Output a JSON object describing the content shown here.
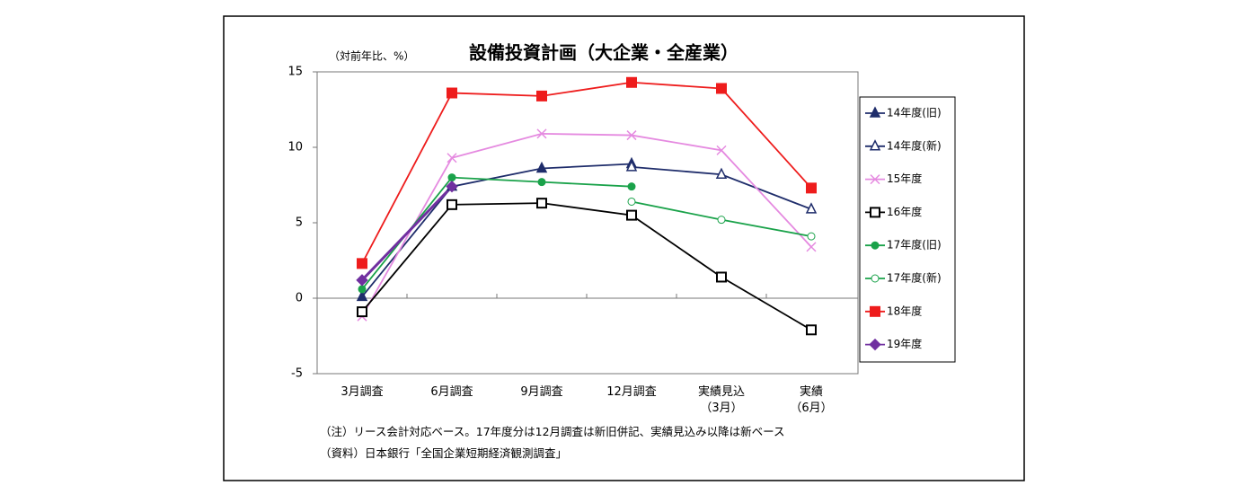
{
  "chart_data": {
    "type": "line",
    "title": "設備投資計画（大企業・全産業）",
    "y_label": "（対前年比、%）",
    "categories": [
      "3月調査",
      "6月調査",
      "9月調査",
      "12月調査",
      "実績見込\n（3月）",
      "実績\n（6月）"
    ],
    "ylim": [
      -5,
      15
    ],
    "yticks": [
      -5,
      0,
      5,
      10,
      15
    ],
    "series": [
      {
        "name": "14年度(旧)",
        "color": "#1f2d6b",
        "marker": "triangle",
        "values": [
          0.1,
          7.4,
          8.6,
          8.9,
          null,
          null
        ]
      },
      {
        "name": "14年度(新)",
        "color": "#1f2d6b",
        "marker": "triangle-open",
        "values": [
          null,
          null,
          null,
          8.7,
          8.2,
          5.9
        ]
      },
      {
        "name": "15年度",
        "color": "#e58ae0",
        "marker": "x",
        "values": [
          -1.2,
          9.3,
          10.9,
          10.8,
          9.8,
          3.4
        ]
      },
      {
        "name": "16年度",
        "color": "#000000",
        "marker": "square-open",
        "values": [
          -0.9,
          6.2,
          6.3,
          5.5,
          1.4,
          -2.1
        ]
      },
      {
        "name": "17年度(旧)",
        "color": "#1aa24a",
        "marker": "circle",
        "values": [
          0.6,
          8.0,
          7.7,
          7.4,
          null,
          null
        ]
      },
      {
        "name": "17年度(新)",
        "color": "#1aa24a",
        "marker": "circle-open",
        "values": [
          null,
          null,
          null,
          6.4,
          5.2,
          4.1
        ]
      },
      {
        "name": "18年度",
        "color": "#ee1c1c",
        "marker": "square",
        "values": [
          2.3,
          13.6,
          13.4,
          14.3,
          13.9,
          7.3
        ]
      },
      {
        "name": "19年度",
        "color": "#7030a0",
        "marker": "diamond",
        "values": [
          1.2,
          7.4,
          null,
          null,
          null,
          null
        ]
      }
    ],
    "notes": [
      "（注）リース会計対応ベース。17年度分は12月調査は新旧併記、実績見込み以降は新ベース",
      "（資料）日本銀行「全国企業短期経済観測調査」"
    ]
  }
}
